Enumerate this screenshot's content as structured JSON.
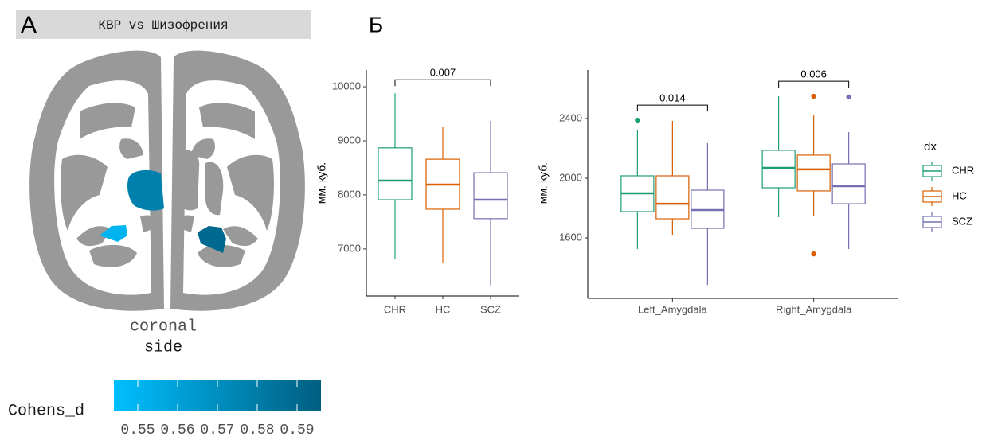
{
  "panel_labels": [
    "A",
    "Б"
  ],
  "chart_data": [
    {
      "type": "brain-map",
      "title": "КВР vs Шизофрения",
      "view": [
        "coronal",
        "side"
      ],
      "regions": [
        {
          "value": 0.55
        },
        {
          "value": 0.578
        },
        {
          "value": 0.59
        }
      ],
      "colorbar": {
        "title": "Cohens_d",
        "colors": [
          "#00bfff",
          "#005e80"
        ],
        "lim": [
          0.544,
          0.596
        ],
        "ticks": [
          0.55,
          0.56,
          0.57,
          0.58,
          0.59
        ]
      }
    },
    {
      "type": "box",
      "categories": [
        "CHR",
        "HC",
        "SCZ"
      ],
      "colors": [
        "#1b9e77",
        "#d95f02",
        "#7570b3"
      ],
      "whisker_low": [
        6820,
        6750,
        6325
      ],
      "q1": [
        7910,
        7735,
        7560
      ],
      "median": [
        8265,
        8190,
        7910
      ],
      "q3": [
        8870,
        8660,
        8410
      ],
      "whisker_high": [
        9880,
        9265,
        9370
      ],
      "ylabel": "мм. куб.",
      "ylim": [
        6130,
        10310
      ],
      "yticks": [
        7000,
        8000,
        9000,
        10000
      ],
      "annotations": [
        {
          "text": "0.007",
          "from": "CHR",
          "to": "SCZ",
          "y": 10130
        }
      ]
    },
    {
      "type": "grouped-box",
      "categories": [
        "Left_Amygdala",
        "Right_Amygdala"
      ],
      "series": [
        {
          "name": "CHR",
          "color": "#1b9e77",
          "whisker_low": [
            1525,
            1739
          ],
          "q1": [
            1776,
            1936
          ],
          "median": [
            1899,
            2069
          ],
          "q3": [
            2016,
            2187
          ],
          "whisker_high": [
            2320,
            2549
          ],
          "outliers": [
            [
              2389
            ],
            []
          ]
        },
        {
          "name": "HC",
          "color": "#d95f02",
          "whisker_low": [
            1621,
            1744
          ],
          "q1": [
            1728,
            1915
          ],
          "median": [
            1829,
            2059
          ],
          "q3": [
            2016,
            2155
          ],
          "whisker_high": [
            2384,
            2421
          ],
          "outliers": [
            [],
            [
              2549,
              1493
            ]
          ]
        },
        {
          "name": "SCZ",
          "color": "#7570b3",
          "whisker_low": [
            1285,
            1525
          ],
          "q1": [
            1664,
            1829
          ],
          "median": [
            1787,
            1947
          ],
          "q3": [
            1920,
            2096
          ],
          "whisker_high": [
            2235,
            2309
          ],
          "outliers": [
            [],
            [
              2544
            ]
          ]
        }
      ],
      "ylabel": "мм. куб.",
      "ylim": [
        1195,
        2725
      ],
      "yticks": [
        1600,
        2000,
        2400
      ],
      "legend_title": "dx",
      "annotations": [
        {
          "text": "0.014",
          "category": "Left_Amygdala",
          "from": "CHR",
          "to": "SCZ",
          "y": 2490
        },
        {
          "text": "0.006",
          "category": "Right_Amygdala",
          "from": "CHR",
          "to": "SCZ",
          "y": 2650
        }
      ]
    }
  ]
}
